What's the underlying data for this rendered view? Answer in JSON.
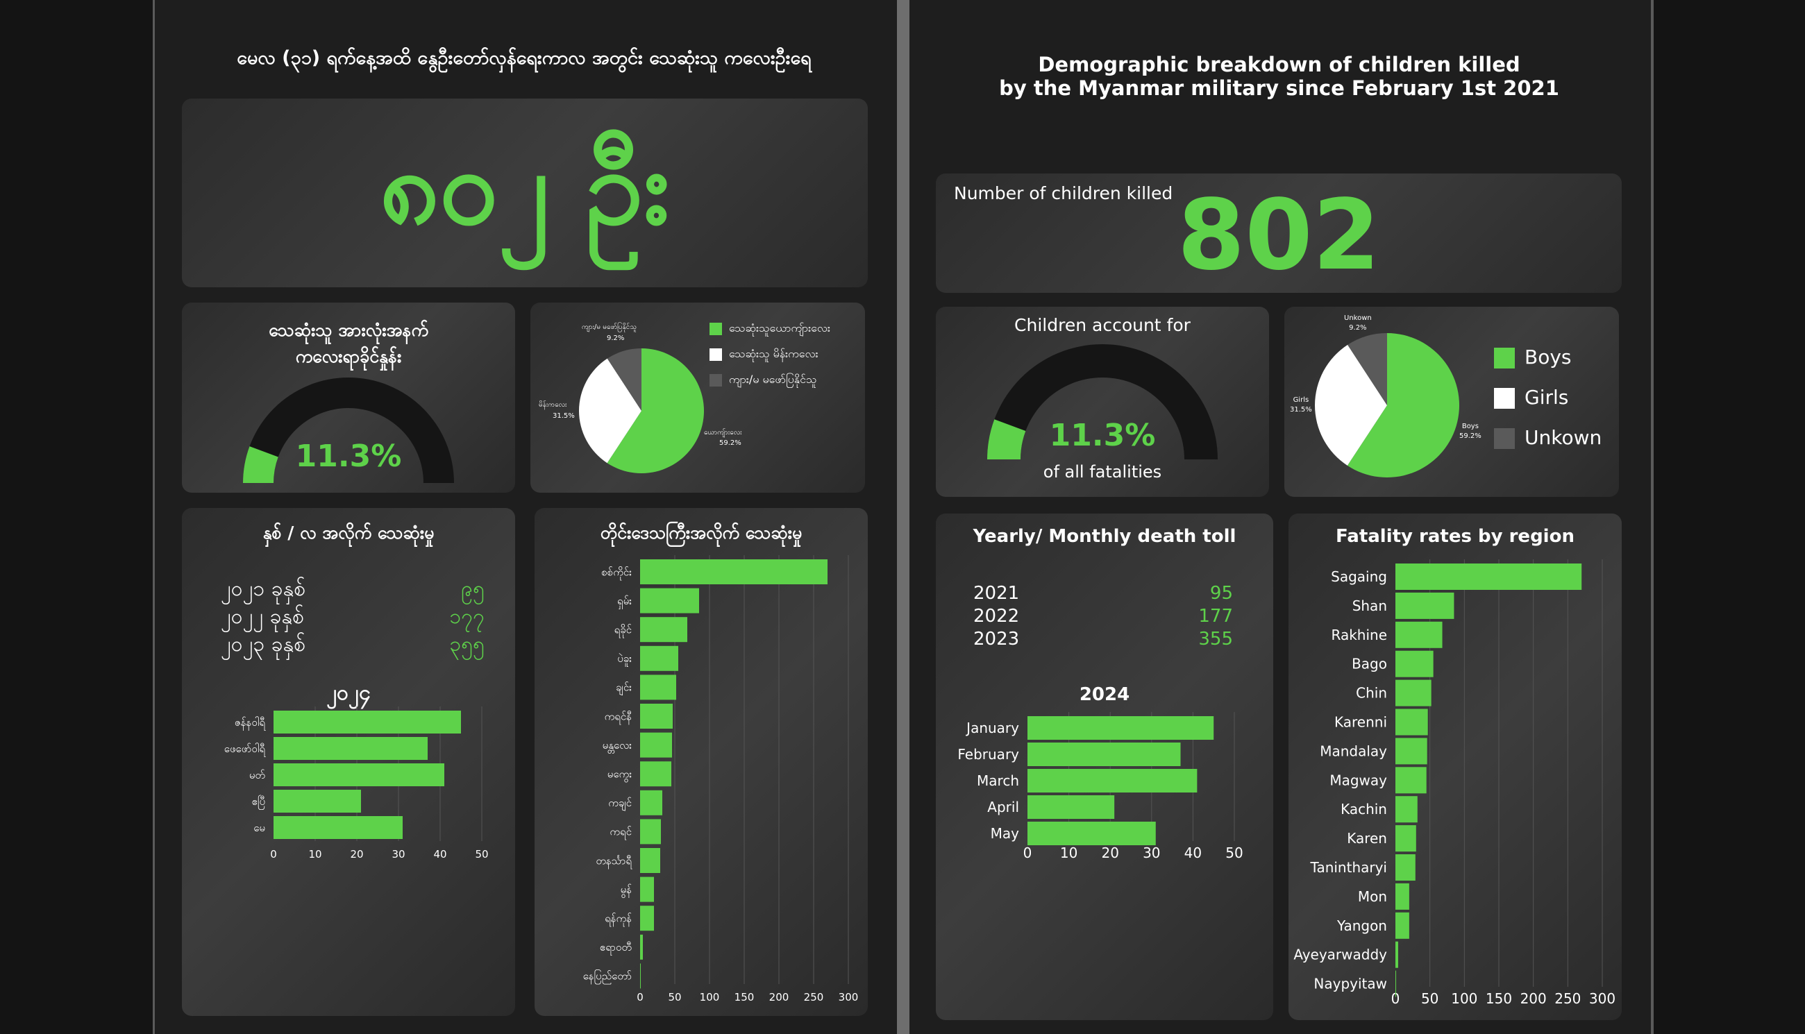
{
  "colors": {
    "green": "#5ed24a",
    "white": "#ffffff",
    "gray": "#5a5a5a",
    "dark": "#151515"
  },
  "left": {
    "header": "မေလ (၃၁) ရက်နေ့အထိ နွေဦးတော်လှန်ရေးကာလ အတွင်း သေဆုံးသူ ကလေးဦးရေ",
    "big_number": "၈၀၂ ဦး",
    "gauge_title_1": "သေဆုံးသူ အားလုံးအနက်",
    "gauge_title_2": "ကလေးရာခိုင်နှုန်း",
    "gauge_value": "11.3%",
    "pie_labels": [
      {
        "name": "ယောကျ်ားလေး",
        "pct": "59.2%"
      },
      {
        "name": "မိန်းကလေး",
        "pct": "31.5%"
      },
      {
        "name": "ကျား/မ မဖော်ပြနိုင်သူ",
        "pct": "9.2%"
      }
    ],
    "legend": [
      "သေဆုံးသူယောကျ်ားလေး",
      "သေဆုံးသူ မိန်းကလေး",
      "ကျား/မ မဖော်ပြနိုင်သူ"
    ],
    "yearly_title": "နှစ် / လ အလိုက် သေဆုံးမှု",
    "years": [
      {
        "label": "၂၀၂၁ ခုနှစ်",
        "value": "၉၅"
      },
      {
        "label": "၂၀၂၂ ခုနှစ်",
        "value": "၁၇၇"
      },
      {
        "label": "၂၀၂၃ ခုနှစ်",
        "value": "၃၅၅"
      }
    ],
    "monthly_title": "၂၀၂၄",
    "regional_title": "တိုင်းဒေသကြီးအလိုက် သေဆုံးမှု"
  },
  "right": {
    "header_1": "Demographic breakdown of children killed",
    "header_2": "by the Myanmar military since February 1st 2021",
    "killed_label": "Number of children killed",
    "killed_value": "802",
    "gauge_title": "Children account for",
    "gauge_value": "11.3%",
    "gauge_sub": "of all fatalities",
    "pie_labels": [
      {
        "name": "Boys",
        "pct": "59.2%"
      },
      {
        "name": "Girls",
        "pct": "31.5%"
      },
      {
        "name": "Unkown",
        "pct": "9.2%"
      }
    ],
    "legend": [
      "Boys",
      "Girls",
      "Unkown"
    ],
    "yearly_title": "Yearly/ Monthly death toll",
    "years": [
      {
        "label": "2021",
        "value": "95"
      },
      {
        "label": "2022",
        "value": "177"
      },
      {
        "label": "2023",
        "value": "355"
      }
    ],
    "monthly_title": "2024",
    "regional_title": "Fatality rates by region"
  },
  "chart_data": [
    {
      "type": "gauge",
      "value_pct": 11.3
    },
    {
      "type": "pie",
      "series": [
        {
          "name": "Boys",
          "values": [
            59.2
          ]
        },
        {
          "name": "Girls",
          "values": [
            31.5
          ]
        },
        {
          "name": "Unkown",
          "values": [
            9.2
          ]
        }
      ]
    },
    {
      "type": "bar",
      "title": "2024",
      "categories": [
        "January",
        "February",
        "March",
        "April",
        "May"
      ],
      "categories_mm": [
        "ဇန်နဝါရီ",
        "ဖေဖော်ဝါရီ",
        "မတ်",
        "ဧပြီ",
        "မေ"
      ],
      "values": [
        45,
        37,
        41,
        21,
        31
      ],
      "ticks": [
        0,
        10,
        20,
        30,
        40,
        50
      ],
      "xlim": [
        0,
        50
      ]
    },
    {
      "type": "bar",
      "title": "Fatality rates by region",
      "categories": [
        "Sagaing",
        "Shan",
        "Rakhine",
        "Bago",
        "Chin",
        "Karenni",
        "Mandalay",
        "Magway",
        "Kachin",
        "Karen",
        "Tanintharyi",
        "Mon",
        "Yangon",
        "Ayeyarwaddy",
        "Naypyitaw"
      ],
      "categories_mm": [
        "စစ်ကိုင်း",
        "ရှမ်း",
        "ရခိုင်",
        "ပဲခူး",
        "ချင်း",
        "ကရင်နီ",
        "မန္တလေး",
        "မကွေး",
        "ကချင်",
        "ကရင်",
        "တနင်္သာရီ",
        "မွန်",
        "ရန်ကုန်",
        "ဧရာဝတီ",
        "နေပြည်တော်"
      ],
      "values": [
        270,
        85,
        68,
        55,
        52,
        47,
        46,
        45,
        32,
        30,
        29,
        20,
        20,
        4,
        1
      ],
      "ticks": [
        0,
        50,
        100,
        150,
        200,
        250,
        300
      ],
      "xlim": [
        0,
        300
      ]
    }
  ]
}
